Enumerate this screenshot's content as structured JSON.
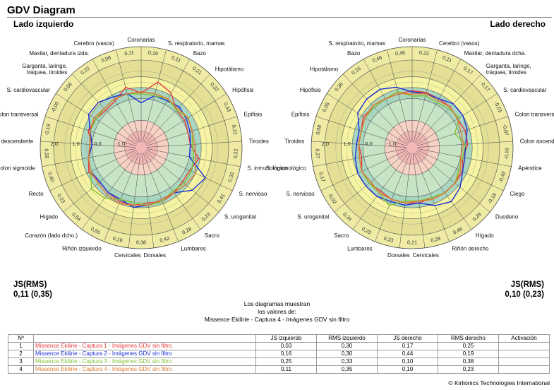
{
  "title": "GDV Diagram",
  "note": [
    "Los diagramas muestran",
    "los valores de:",
    "Missence Ekilirie - Captura 4 - Imágenes GDV sin filtro"
  ],
  "footer": "© Kirlionics Technologies International",
  "chart_data": [
    {
      "type": "radar",
      "side_title": "Lado izquierdo",
      "score_label": "JS(RMS)",
      "score_value": "0,11 (0,35)",
      "rlim": [
        -2,
        1.5
      ],
      "ring_labels": [
        "2,0",
        "1,0",
        "0,0",
        "-1,0"
      ],
      "zones": [
        {
          "from": -2,
          "to": -1,
          "color": "#f2b8b6"
        },
        {
          "from": -1,
          "to": 0,
          "color": "#f7d2c4"
        },
        {
          "from": 0,
          "to": 0.5,
          "color": "#c8e4c6"
        },
        {
          "from": 0.5,
          "to": 1.0,
          "color": "#a9d6c0"
        },
        {
          "from": 1.0,
          "to": 1.5,
          "color": "#f6f4a3"
        },
        {
          "from": 1.5,
          "to": 2.0,
          "color": "#e3df95"
        }
      ],
      "categories": [
        "Coronarias",
        "S. respiratorio, mamas",
        "Bazo",
        "Hipotálamo",
        "Hipófisis",
        "Epífisis",
        "Tiroides",
        "S. inmunológico",
        "S. nervioso",
        "S. urogenital",
        "Sacro",
        "Lumbares",
        "Dorsales",
        "Cervicales",
        "Riñón izquierdo",
        "Corazón (lado dcho.)",
        "Hígado",
        "Recto",
        "Colon sigmoide",
        "Colon descendente",
        "Colon transversal",
        "S. cardiovascular",
        "Garganta, laringe, tráquea, tiroides",
        "Maxilar, dentadura izda.",
        "Cerebro (vasos)"
      ],
      "outer_values": [
        "0,19",
        "0,11",
        "0,21",
        "0,32",
        "0,43",
        "0,31",
        "0,22",
        "0,33",
        "0,41",
        "0,23",
        "0,28",
        "0,42",
        "0,38",
        "0,19",
        "0,60",
        "0,54",
        "0,23",
        "0,40",
        "0,50",
        "-0,19",
        "-0,06",
        "0,06",
        "0,22",
        "0,08",
        "0,11"
      ],
      "series": [
        {
          "name": "Missence Ekilirie - Captura 1 - Imágenes GDV sin filtro",
          "color": "#e8393b",
          "values": [
            0.25,
            0.85,
            0.6,
            0.1,
            0.1,
            0.0,
            0.0,
            0.45,
            0.2,
            0.2,
            0.3,
            0.4,
            0.3,
            0.4,
            0.4,
            0.3,
            0.2,
            0.4,
            0.2,
            0.0,
            0.3,
            0.2,
            0.1,
            0.2,
            0.6
          ]
        },
        {
          "name": "Missence Ekilirie - Captura 2 - Imágenes GDV sin filtro",
          "color": "#1a2fd6",
          "values": [
            -0.2,
            0.2,
            0.2,
            0.3,
            0.2,
            0.1,
            0.0,
            0.0,
            1.0,
            0.8,
            0.3,
            0.3,
            0.4,
            0.5,
            0.3,
            0.3,
            0.2,
            0.3,
            0.2,
            0.0,
            0.2,
            0.6,
            0.6,
            0.4,
            0.3
          ]
        },
        {
          "name": "Missence Ekilirie - Captura 3 - Imágenes GDV sin filtro",
          "color": "#7fc232",
          "values": [
            0.2,
            0.2,
            0.3,
            0.1,
            0.3,
            0.2,
            0.1,
            0.2,
            0.3,
            0.3,
            0.2,
            0.4,
            0.4,
            0.3,
            0.3,
            0.6,
            0.7,
            0.3,
            0.2,
            0.1,
            0.2,
            0.2,
            0.2,
            0.3,
            0.3
          ]
        },
        {
          "name": "Missence Ekilirie - Captura 4 - Imágenes GDV sin filtro",
          "color": "#e07b32",
          "values": [
            0.3,
            0.3,
            0.3,
            0.2,
            0.3,
            0.2,
            0.2,
            0.3,
            0.5,
            0.4,
            0.3,
            0.3,
            0.4,
            0.4,
            0.5,
            0.4,
            0.3,
            0.3,
            0.2,
            0.1,
            0.2,
            0.3,
            0.2,
            0.3,
            0.3
          ]
        }
      ]
    },
    {
      "type": "radar",
      "side_title": "Lado derecho",
      "score_label": "JS(RMS)",
      "score_value": "0,10 (0,23)",
      "rlim": [
        -2,
        1.5
      ],
      "ring_labels": [
        "2,0",
        "1,0",
        "0,0",
        "-1,0"
      ],
      "zones": [
        {
          "from": -2,
          "to": -1,
          "color": "#f2b8b6"
        },
        {
          "from": -1,
          "to": 0,
          "color": "#f7d2c4"
        },
        {
          "from": 0,
          "to": 0.5,
          "color": "#c8e4c6"
        },
        {
          "from": 0.5,
          "to": 1.0,
          "color": "#a9d6c0"
        },
        {
          "from": 1.0,
          "to": 1.5,
          "color": "#f6f4a3"
        },
        {
          "from": 1.5,
          "to": 2.0,
          "color": "#e3df95"
        }
      ],
      "categories": [
        "Coronarias",
        "Cerebro (vasos)",
        "Maxilar, dentadura dcha.",
        "Garganta, laringe, tráquea, tiroides",
        "S. cardiovascular",
        "Colon transversal",
        "Colon ascendente",
        "Apéndice",
        "Ciego",
        "Duodeno",
        "Hígado",
        "Riñón derecho",
        "Cervicales",
        "Dorsales",
        "Lumbares",
        "Sacro",
        "S. urogenital",
        "S. nervioso",
        "S. inmunológico",
        "Tiroides",
        "Epífisis",
        "Hipófisis",
        "Hipotálamo",
        "Bazo",
        "S. respiratorio, mamas"
      ],
      "outer_values": [
        "0,22",
        "0,11",
        "0,17",
        "0,17",
        "-0,01",
        "-0,07",
        "-0,16",
        "-0,42",
        "-0,18",
        "0,29",
        "0,46",
        "0,28",
        "0,21",
        "0,33",
        "0,25",
        "0,34",
        "-0,02",
        "0,17",
        "0,27",
        "0,08",
        "0,05",
        "0,38",
        "0,16",
        "0,46",
        "0,46"
      ],
      "series": [
        {
          "name": "Missence Ekilirie - Captura 1 - Imágenes GDV sin filtro",
          "color": "#e8393b",
          "values": [
            0.35,
            0.35,
            0.3,
            0.3,
            0.2,
            0.3,
            0.3,
            0.1,
            0.3,
            0.3,
            0.3,
            0.2,
            0.3,
            0.3,
            0.3,
            0.2,
            0.3,
            0.3,
            0.1,
            0.2,
            0.2,
            0.4,
            0.3,
            0.3,
            0.3
          ]
        },
        {
          "name": "Missence Ekilirie - Captura 2 - Imágenes GDV sin filtro",
          "color": "#1a2fd6",
          "values": [
            0.3,
            0.3,
            0.3,
            0.5,
            0.5,
            0.4,
            0.2,
            0.2,
            0.3,
            0.6,
            0.8,
            0.6,
            0.3,
            0.4,
            0.4,
            0.5,
            0.5,
            0.5,
            0.4,
            0.3,
            0.3,
            0.7,
            0.8,
            0.8,
            0.6
          ]
        },
        {
          "name": "Missence Ekilirie - Captura 3 - Imágenes GDV sin filtro",
          "color": "#7fc232",
          "values": [
            0.1,
            0.2,
            0.1,
            0.2,
            0.3,
            -0.2,
            0.2,
            0.1,
            0.1,
            0.3,
            0.3,
            0.2,
            0.2,
            0.2,
            0.6,
            0.3,
            0.3,
            0.3,
            0.2,
            0.2,
            0.2,
            0.3,
            0.3,
            0.3,
            0.4
          ]
        },
        {
          "name": "Missence Ekilirie - Captura 4 - Imágenes GDV sin filtro",
          "color": "#e07b32",
          "values": [
            0.2,
            0.3,
            0.2,
            0.3,
            0.2,
            0.1,
            0.1,
            0.0,
            0.2,
            0.3,
            0.3,
            0.3,
            0.2,
            0.3,
            0.3,
            0.3,
            0.2,
            0.3,
            0.2,
            0.2,
            0.2,
            0.3,
            0.4,
            0.3,
            0.3
          ]
        }
      ]
    }
  ],
  "table": {
    "headers": [
      "Nº",
      "",
      "JS izquierdo",
      "RMS izquierdo",
      "JS derecho",
      "RMS derecho",
      "Activación"
    ],
    "rows": [
      {
        "n": "1",
        "name": "Missence Ekilirie - Captura 1 - Imágenes GDV sin filtro",
        "js_l": "0,03",
        "rms_l": "0,30",
        "js_r": "0,17",
        "rms_r": "0,25",
        "act": "",
        "color": "#e8393b"
      },
      {
        "n": "2",
        "name": "Missence Ekilirie - Captura 2 - Imágenes GDV sin filtro",
        "js_l": "0,16",
        "rms_l": "0,30",
        "js_r": "0,44",
        "rms_r": "0,19",
        "act": "",
        "color": "#1a2fd6"
      },
      {
        "n": "3",
        "name": "Missence Ekilirie - Captura 3 - Imágenes GDV sin filtro",
        "js_l": "0,25",
        "rms_l": "0,33",
        "js_r": "0,10",
        "rms_r": "0,38",
        "act": "",
        "color": "#7fc232"
      },
      {
        "n": "4",
        "name": "Missence Ekilirie - Captura 4 - Imágenes GDV sin filtro",
        "js_l": "0,11",
        "rms_l": "0,35",
        "js_r": "0,10",
        "rms_r": "0,23",
        "act": "",
        "color": "#e07b32"
      }
    ]
  }
}
